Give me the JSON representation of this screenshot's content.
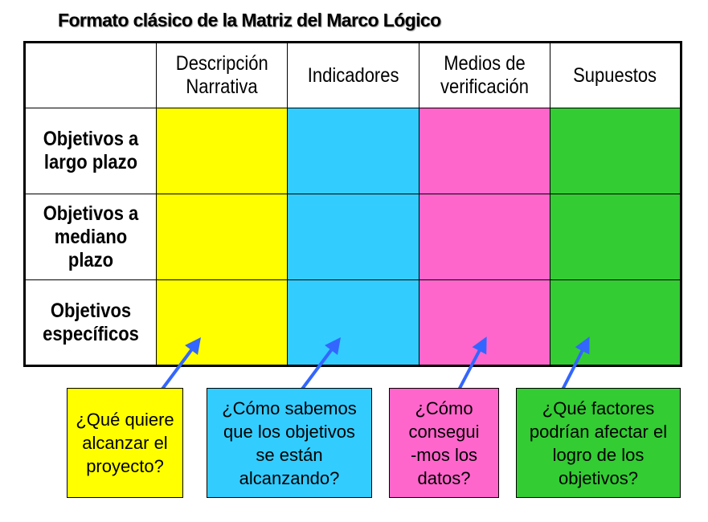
{
  "title": "Formato clásico de la Matriz del Marco Lógico",
  "colors": {
    "narrativa": "#FFFF00",
    "indicadores": "#33CCFF",
    "medios": "#FF66CC",
    "supuestos": "#33CC33",
    "arrow": "#3366FF"
  },
  "columns": [
    "Descripción Narrativa",
    "Indicadores",
    "Medios de verificación",
    "Supuestos"
  ],
  "rows": [
    "Objetivos a largo plazo",
    "Objetivos a mediano plazo",
    "Objetivos específicos"
  ],
  "questions": [
    "¿Qué quiere alcanzar el proyecto?",
    "¿Cómo sabemos que los objetivos se están alcanzando?",
    "¿Cómo consegui-mos los datos?",
    "¿Qué factores podrían afectar el logro de los objetivos?"
  ]
}
